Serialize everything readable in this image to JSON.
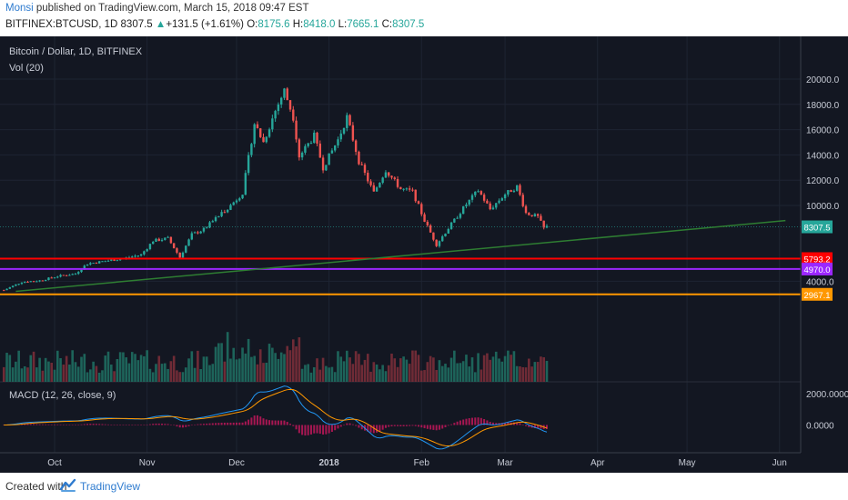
{
  "header": {
    "author": "Monsi",
    "published": "published on TradingView.com, March 15, 2018 09:47 EST",
    "symbol": "BITFINEX:BTCUSD, 1D",
    "last": "8307.5",
    "change": "+131.5 (+1.61%)",
    "o_label": "O:",
    "o_value": "8175.6",
    "h_label": "H:",
    "h_value": "8418.0",
    "l_label": "L:",
    "l_value": "7665.1",
    "c_label": "C:",
    "c_value": "8307.5"
  },
  "footer": {
    "created_with": "Created with",
    "brand": "TradingView"
  },
  "chart_data": {
    "type": "candlestick",
    "title": "Bitcoin / Dollar, 1D, BITFINEX",
    "volume_label": "Vol (20)",
    "macd_label": "MACD (12, 26, close, 9)",
    "price_ticks": [
      "20000.0",
      "18000.0",
      "16000.0",
      "14000.0",
      "12000.0",
      "10000.0",
      "4000.0"
    ],
    "price_tick_values": [
      20000,
      18000,
      16000,
      14000,
      12000,
      10000,
      4000
    ],
    "macd_ticks": [
      "2000.0000",
      "0.0000"
    ],
    "macd_tick_values": [
      2000,
      0
    ],
    "x_labels": [
      "Oct",
      "Nov",
      "Dec",
      "2018",
      "Feb",
      "Mar",
      "Apr",
      "May",
      "Jun"
    ],
    "x_label_dates": [
      "2017-10-01",
      "2017-11-01",
      "2017-12-01",
      "2018-01-01",
      "2018-02-01",
      "2018-03-01",
      "2018-04-01",
      "2018-05-01",
      "2018-06-01"
    ],
    "horizontal_levels": [
      {
        "label": "5793.2",
        "value": 5793.2,
        "color": "#ff0000"
      },
      {
        "label": "4970.0",
        "value": 4970.0,
        "color": "#9c27ff"
      },
      {
        "label": "2967.1",
        "value": 2967.1,
        "color": "#ff9800"
      }
    ],
    "last_price": {
      "label": "8307.5",
      "value": 8307.5,
      "color": "#26a69a"
    },
    "trendline": {
      "color": "#2e7d32",
      "start": [
        "2017-09-18",
        3200
      ],
      "end": [
        "2018-06-03",
        8800
      ]
    },
    "closes": [
      {
        "date": "2017-09-14",
        "close": 3300
      },
      {
        "date": "2017-09-20",
        "close": 3950
      },
      {
        "date": "2017-09-26",
        "close": 4050
      },
      {
        "date": "2017-10-02",
        "close": 4400
      },
      {
        "date": "2017-10-08",
        "close": 4600
      },
      {
        "date": "2017-10-12",
        "close": 5400
      },
      {
        "date": "2017-10-18",
        "close": 5600
      },
      {
        "date": "2017-10-24",
        "close": 5800
      },
      {
        "date": "2017-10-30",
        "close": 6100
      },
      {
        "date": "2017-11-03",
        "close": 7200
      },
      {
        "date": "2017-11-08",
        "close": 7400
      },
      {
        "date": "2017-11-12",
        "close": 5900
      },
      {
        "date": "2017-11-16",
        "close": 7700
      },
      {
        "date": "2017-11-20",
        "close": 8100
      },
      {
        "date": "2017-11-26",
        "close": 9400
      },
      {
        "date": "2017-11-29",
        "close": 10000
      },
      {
        "date": "2017-12-03",
        "close": 11000
      },
      {
        "date": "2017-12-07",
        "close": 16500
      },
      {
        "date": "2017-12-10",
        "close": 15000
      },
      {
        "date": "2017-12-14",
        "close": 17500
      },
      {
        "date": "2017-12-17",
        "close": 19100
      },
      {
        "date": "2017-12-20",
        "close": 17000
      },
      {
        "date": "2017-12-22",
        "close": 13900
      },
      {
        "date": "2017-12-27",
        "close": 15500
      },
      {
        "date": "2017-12-30",
        "close": 13000
      },
      {
        "date": "2018-01-04",
        "close": 15200
      },
      {
        "date": "2018-01-07",
        "close": 17000
      },
      {
        "date": "2018-01-11",
        "close": 13500
      },
      {
        "date": "2018-01-16",
        "close": 11000
      },
      {
        "date": "2018-01-20",
        "close": 12800
      },
      {
        "date": "2018-01-25",
        "close": 11300
      },
      {
        "date": "2018-01-29",
        "close": 11100
      },
      {
        "date": "2018-02-02",
        "close": 8800
      },
      {
        "date": "2018-02-06",
        "close": 6900
      },
      {
        "date": "2018-02-10",
        "close": 8200
      },
      {
        "date": "2018-02-16",
        "close": 10100
      },
      {
        "date": "2018-02-20",
        "close": 11200
      },
      {
        "date": "2018-02-24",
        "close": 9700
      },
      {
        "date": "2018-03-01",
        "close": 10900
      },
      {
        "date": "2018-03-05",
        "close": 11500
      },
      {
        "date": "2018-03-08",
        "close": 9400
      },
      {
        "date": "2018-03-12",
        "close": 9100
      },
      {
        "date": "2018-03-14",
        "close": 8200
      },
      {
        "date": "2018-03-15",
        "close": 8307.5
      }
    ]
  }
}
